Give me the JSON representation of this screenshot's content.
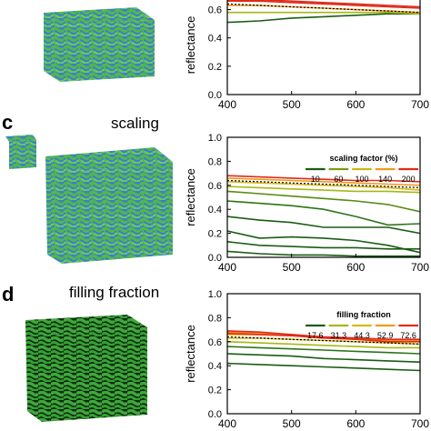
{
  "panels": {
    "c": {
      "letter": "c",
      "title": "scaling"
    },
    "d": {
      "letter": "d",
      "title": "filling fraction"
    }
  },
  "colors": {
    "foam_green": "#52b848",
    "foam_blue": "#3a7fd0",
    "foam_dark": "#0e2a10",
    "dark_green": "#1a5c12",
    "olive": "#a6b814",
    "orange": "#f09a18",
    "red": "#e02a1a"
  },
  "chart_data": [
    {
      "type": "line",
      "xlabel": "",
      "ylabel": "reflectance",
      "xlim": [
        400,
        700
      ],
      "ylim": [
        0,
        0.7
      ],
      "xticks": [
        "400",
        "500",
        "600",
        "700"
      ],
      "yticks": [
        "0.0",
        "0.2",
        "0.4",
        "0.6"
      ],
      "x": [
        400,
        450,
        500,
        550,
        600,
        650,
        700
      ],
      "legend": null,
      "series": [
        {
          "color": "#1a5c12",
          "values": [
            0.51,
            0.52,
            0.54,
            0.55,
            0.56,
            0.57,
            0.57
          ]
        },
        {
          "color": "#a6b814",
          "values": [
            0.58,
            0.58,
            0.58,
            0.58,
            0.58,
            0.58,
            0.57
          ]
        },
        {
          "color": "#f09a18",
          "values": [
            0.63,
            0.63,
            0.62,
            0.61,
            0.6,
            0.59,
            0.58
          ]
        },
        {
          "color": "#e02a1a",
          "values": [
            0.66,
            0.66,
            0.65,
            0.64,
            0.63,
            0.62,
            0.61
          ]
        },
        {
          "color": "#e02a1a",
          "values": [
            0.67,
            0.67,
            0.66,
            0.65,
            0.64,
            0.63,
            0.62
          ]
        },
        {
          "color": "#000000",
          "dashed": true,
          "values": [
            0.64,
            0.63,
            0.62,
            0.61,
            0.6,
            0.59,
            0.58
          ]
        }
      ]
    },
    {
      "type": "line",
      "xlabel": "",
      "ylabel": "reflectance",
      "xlim": [
        400,
        700
      ],
      "ylim": [
        0,
        1.0
      ],
      "xticks": [
        "400",
        "500",
        "600",
        "700"
      ],
      "yticks": [
        "0.0",
        "0.2",
        "0.4",
        "0.6",
        "0.8",
        "1.0"
      ],
      "x": [
        400,
        450,
        500,
        550,
        600,
        650,
        700
      ],
      "legend": {
        "title": "scaling factor (%)",
        "entries": [
          {
            "label": "10",
            "color": "#1a5c12"
          },
          {
            "label": "60",
            "color": "#7a9a10"
          },
          {
            "label": "100",
            "color": "#c8b814"
          },
          {
            "label": "140",
            "color": "#f09a18"
          },
          {
            "label": "200",
            "color": "#e02a1a"
          }
        ]
      },
      "series": [
        {
          "color": "#1a5c12",
          "values": [
            0.05,
            0.03,
            0.02,
            0.02,
            0.01,
            0.01,
            0.01
          ]
        },
        {
          "color": "#1a5c12",
          "values": [
            0.13,
            0.1,
            0.09,
            0.08,
            0.08,
            0.07,
            0.07
          ]
        },
        {
          "color": "#1a5c12",
          "values": [
            0.22,
            0.16,
            0.17,
            0.16,
            0.14,
            0.1,
            0.04
          ]
        },
        {
          "color": "#1a5c12",
          "values": [
            0.34,
            0.31,
            0.29,
            0.25,
            0.25,
            0.25,
            0.2
          ]
        },
        {
          "color": "#2d7418",
          "values": [
            0.47,
            0.45,
            0.43,
            0.4,
            0.34,
            0.27,
            0.28
          ]
        },
        {
          "color": "#5a8a14",
          "values": [
            0.55,
            0.53,
            0.51,
            0.49,
            0.47,
            0.44,
            0.38
          ]
        },
        {
          "color": "#a6b814",
          "values": [
            0.59,
            0.58,
            0.57,
            0.56,
            0.55,
            0.55,
            0.54
          ]
        },
        {
          "color": "#d8b814",
          "values": [
            0.63,
            0.62,
            0.61,
            0.6,
            0.59,
            0.58,
            0.56
          ]
        },
        {
          "color": "#f09a18",
          "values": [
            0.66,
            0.65,
            0.64,
            0.63,
            0.62,
            0.61,
            0.6
          ]
        },
        {
          "color": "#e02a1a",
          "values": [
            0.68,
            0.67,
            0.66,
            0.65,
            0.64,
            0.64,
            0.63
          ]
        },
        {
          "color": "#000000",
          "dashed": true,
          "values": [
            0.64,
            0.63,
            0.62,
            0.61,
            0.6,
            0.59,
            0.58
          ]
        }
      ]
    },
    {
      "type": "line",
      "xlabel": "",
      "ylabel": "reflectance",
      "xlim": [
        400,
        700
      ],
      "ylim": [
        0,
        1.0
      ],
      "xticks": [
        "400",
        "500",
        "600",
        "700"
      ],
      "yticks": [
        "0.0",
        "0.2",
        "0.4",
        "0.6",
        "0.8",
        "1.0"
      ],
      "x": [
        400,
        450,
        500,
        550,
        600,
        650,
        700
      ],
      "legend": {
        "title": "filling fraction",
        "entries": [
          {
            "label": "17.6",
            "color": "#1a5c12"
          },
          {
            "label": "31.3",
            "color": "#a6b814"
          },
          {
            "label": "44.3",
            "color": "#d8b814"
          },
          {
            "label": "52.9",
            "color": "#f09a18"
          },
          {
            "label": "72.6",
            "color": "#e02a1a"
          }
        ]
      },
      "series": [
        {
          "color": "#1a5c12",
          "values": [
            0.42,
            0.41,
            0.4,
            0.39,
            0.38,
            0.37,
            0.36
          ]
        },
        {
          "color": "#1a5c12",
          "values": [
            0.5,
            0.49,
            0.48,
            0.46,
            0.45,
            0.44,
            0.43
          ]
        },
        {
          "color": "#2d7418",
          "values": [
            0.56,
            0.55,
            0.54,
            0.53,
            0.52,
            0.51,
            0.5
          ]
        },
        {
          "color": "#a6b814",
          "values": [
            0.6,
            0.59,
            0.58,
            0.57,
            0.56,
            0.55,
            0.55
          ]
        },
        {
          "color": "#d8b814",
          "values": [
            0.63,
            0.63,
            0.62,
            0.61,
            0.6,
            0.59,
            0.58
          ]
        },
        {
          "color": "#f09a18",
          "values": [
            0.66,
            0.66,
            0.65,
            0.64,
            0.62,
            0.61,
            0.6
          ]
        },
        {
          "color": "#f09a18",
          "values": [
            0.68,
            0.67,
            0.66,
            0.64,
            0.63,
            0.62,
            0.61
          ]
        },
        {
          "color": "#e02a1a",
          "values": [
            0.69,
            0.68,
            0.66,
            0.64,
            0.63,
            0.62,
            0.62
          ]
        },
        {
          "color": "#e02a1a",
          "values": [
            0.67,
            0.66,
            0.65,
            0.63,
            0.62,
            0.6,
            0.6
          ]
        },
        {
          "color": "#000000",
          "dashed": true,
          "values": [
            0.64,
            0.63,
            0.62,
            0.61,
            0.6,
            0.59,
            0.58
          ]
        }
      ]
    }
  ]
}
